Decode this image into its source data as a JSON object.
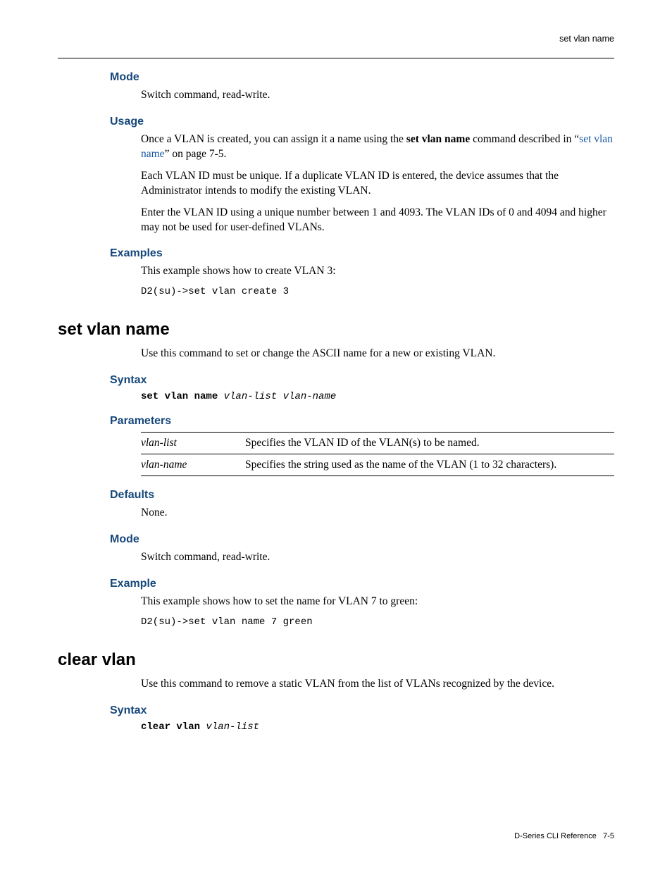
{
  "header": {
    "running_title": "set vlan name"
  },
  "footer": {
    "doc_title": "D-Series CLI Reference",
    "page_ref": "7-5"
  },
  "colors": {
    "heading_blue": "#15477a",
    "link_blue": "#1a5aa6",
    "text": "#000000",
    "background": "#ffffff",
    "rule": "#000000"
  },
  "typography": {
    "body_family": "Palatino Linotype, Book Antiqua, Palatino, serif",
    "heading_family": "Arial, Helvetica, sans-serif",
    "mono_family": "Courier New, Courier, monospace",
    "body_size_pt": 11.5,
    "sec_heading_size_pt": 12,
    "cmd_heading_size_pt": 18,
    "code_size_pt": 10.5
  },
  "sections": {
    "mode1": {
      "title": "Mode",
      "text": "Switch command, read-write."
    },
    "usage": {
      "title": "Usage",
      "p1_pre": "Once a VLAN is created, you can assign it a name using the ",
      "p1_bold": "set vlan name",
      "p1_mid": " command described in “",
      "p1_link": "set vlan name",
      "p1_post": "” on page 7-5.",
      "p2": "Each VLAN ID must be unique. If a duplicate VLAN ID is entered, the device assumes that the Administrator intends to modify the existing VLAN.",
      "p3": "Enter the VLAN ID using a unique number between 1 and 4093. The VLAN IDs of 0 and 4094 and higher may not be used for user-defined VLANs."
    },
    "examples1": {
      "title": "Examples",
      "intro": "This example shows how to create VLAN 3:",
      "code": "D2(su)->set vlan create 3"
    },
    "set_vlan_name": {
      "title": "set vlan name",
      "desc": "Use this command to set or change the ASCII name for a new or existing VLAN.",
      "syntax_title": "Syntax",
      "syntax_kw": "set vlan name",
      "syntax_args": "vlan-list vlan-name",
      "parameters_title": "Parameters",
      "params": [
        {
          "name": "vlan-list",
          "desc": "Specifies the VLAN ID of the VLAN(s) to be named."
        },
        {
          "name": "vlan-name",
          "desc": "Specifies the string used as the name of the VLAN (1 to 32 characters)."
        }
      ],
      "defaults_title": "Defaults",
      "defaults_text": "None.",
      "mode_title": "Mode",
      "mode_text": "Switch command, read-write.",
      "example_title": "Example",
      "example_intro": "This example shows how to set the name for VLAN 7 to green:",
      "example_code": "D2(su)->set vlan name 7 green"
    },
    "clear_vlan": {
      "title": "clear vlan",
      "desc": "Use this command to remove a static VLAN from the list of VLANs recognized by the device.",
      "syntax_title": "Syntax",
      "syntax_kw": "clear vlan",
      "syntax_args": "vlan-list"
    }
  }
}
